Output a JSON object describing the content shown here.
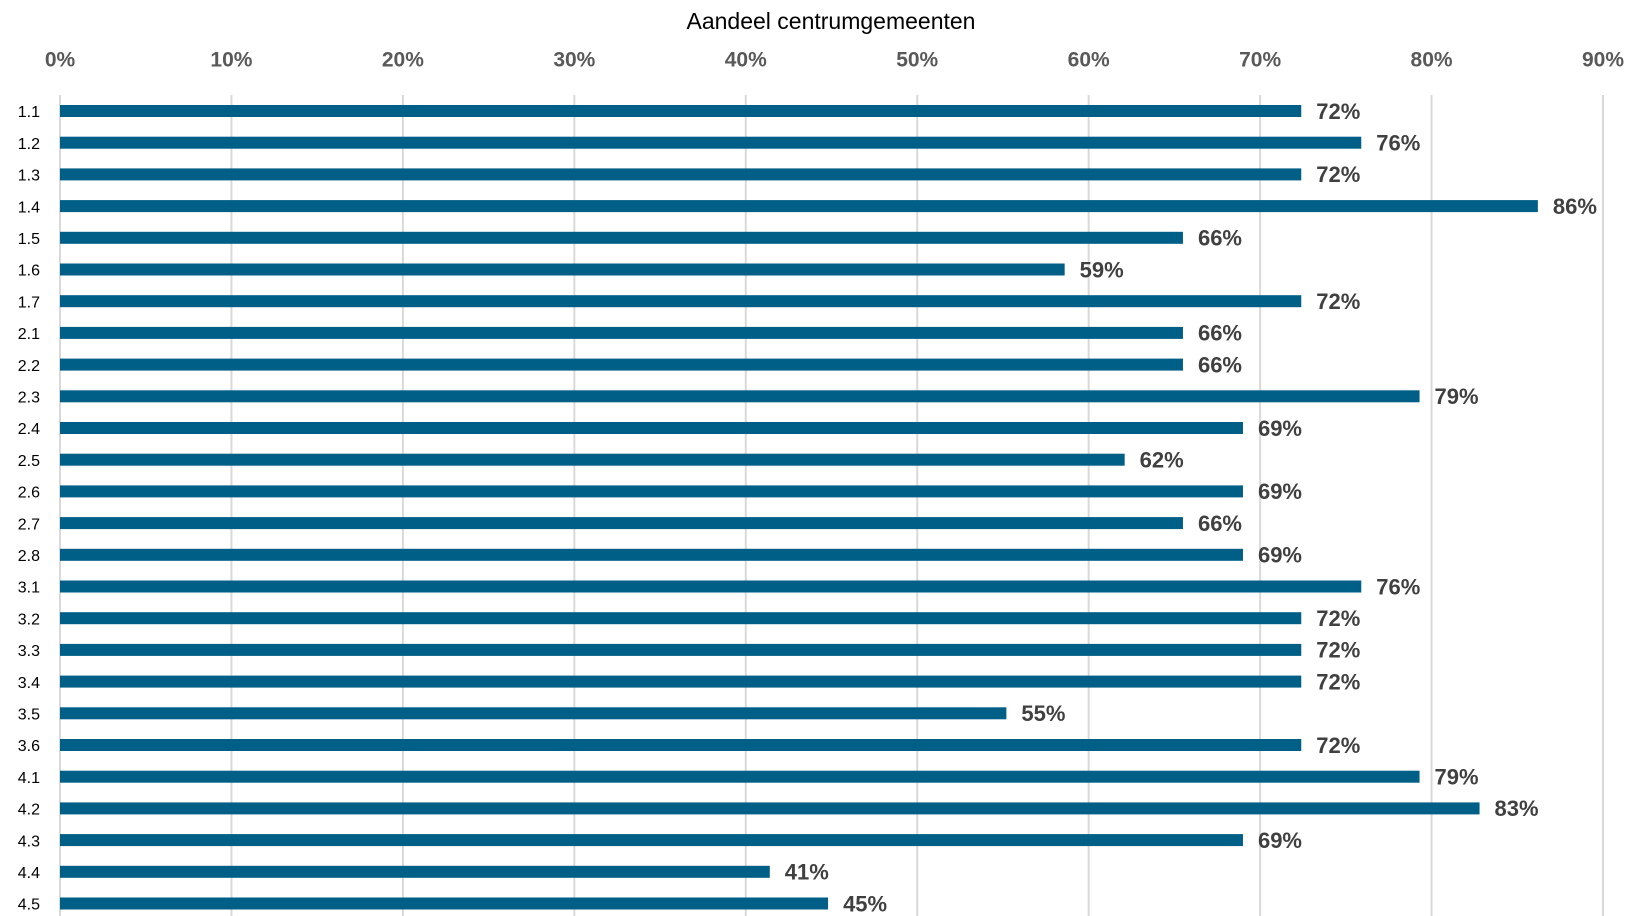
{
  "chart_data": {
    "type": "hbar",
    "title": "Aandeel centrumgemeenten",
    "categories": [
      "1.1",
      "1.2",
      "1.3",
      "1.4",
      "1.5",
      "1.6",
      "1.7",
      "2.1",
      "2.2",
      "2.3",
      "2.4",
      "2.5",
      "2.6",
      "2.7",
      "2.8",
      "3.1",
      "3.2",
      "3.3",
      "3.4",
      "3.5",
      "3.6",
      "4.1",
      "4.2",
      "4.3",
      "4.4",
      "4.5"
    ],
    "values": [
      72.4,
      75.9,
      72.4,
      86.2,
      65.5,
      58.6,
      72.4,
      65.5,
      65.5,
      79.3,
      69.0,
      62.1,
      69.0,
      65.5,
      69.0,
      75.9,
      72.4,
      72.4,
      72.4,
      55.2,
      72.4,
      79.3,
      82.8,
      69.0,
      41.4,
      44.8
    ],
    "value_labels": [
      "72%",
      "76%",
      "72%",
      "86%",
      "66%",
      "59%",
      "72%",
      "66%",
      "66%",
      "79%",
      "69%",
      "62%",
      "69%",
      "66%",
      "69%",
      "76%",
      "72%",
      "72%",
      "72%",
      "55%",
      "72%",
      "79%",
      "83%",
      "69%",
      "41%",
      "45%"
    ],
    "color": "#005f87",
    "xlim": [
      0,
      90
    ],
    "xticks": [
      {
        "value": 0,
        "label": "0%"
      },
      {
        "value": 10,
        "label": "10%"
      },
      {
        "value": 20,
        "label": "20%"
      },
      {
        "value": 30,
        "label": "30%"
      },
      {
        "value": 40,
        "label": "40%"
      },
      {
        "value": 50,
        "label": "50%"
      },
      {
        "value": 60,
        "label": "60%"
      },
      {
        "value": 70,
        "label": "70%"
      },
      {
        "value": 80,
        "label": "80%"
      },
      {
        "value": 90,
        "label": "90%"
      }
    ],
    "grid": true
  }
}
